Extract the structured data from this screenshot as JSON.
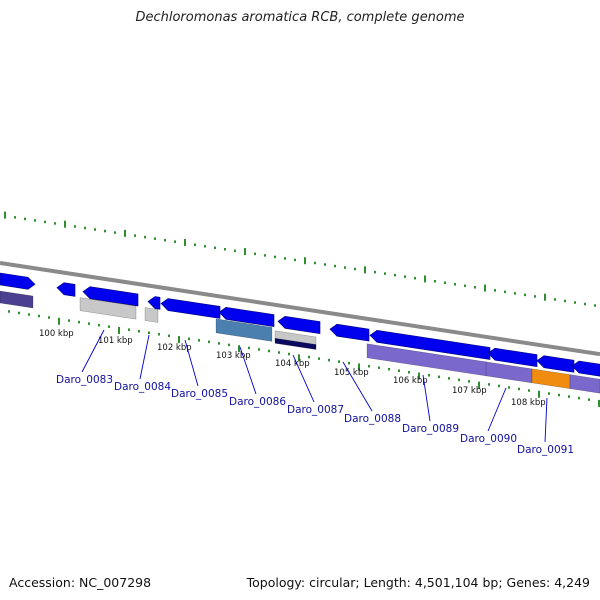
{
  "title": "Dechloromonas aromatica RCB, complete genome",
  "footer": {
    "accession": "Accession: NC_007298",
    "summary": "Topology: circular; Length: 4,501,104 bp; Genes: 4,249"
  },
  "colors": {
    "backbone": "#8a8a8a",
    "tick": "#2f8f2f",
    "gene_forward": "#0000ee",
    "gray_feature": "#c8c8c8",
    "steel_feature": "#4a7fb0",
    "navy_feature": "#0a0a60",
    "purple_feature": "#7b68cc",
    "dark_purple_feature": "#4a3f90",
    "orange_feature": "#f08c10",
    "label_line": "#0000cc",
    "label_text": "#1010a0"
  },
  "kbp_labels": [
    "100 kbp",
    "101 kbp",
    "102 kbp",
    "103 kbp",
    "104 kbp",
    "105 kbp",
    "106 kbp",
    "107 kbp",
    "108 kbp"
  ],
  "gene_labels": [
    "Daro_0083",
    "Daro_0084",
    "Daro_0085",
    "Daro_0086",
    "Daro_0087",
    "Daro_0088",
    "Daro_0089",
    "Daro_0090",
    "Daro_0091"
  ]
}
